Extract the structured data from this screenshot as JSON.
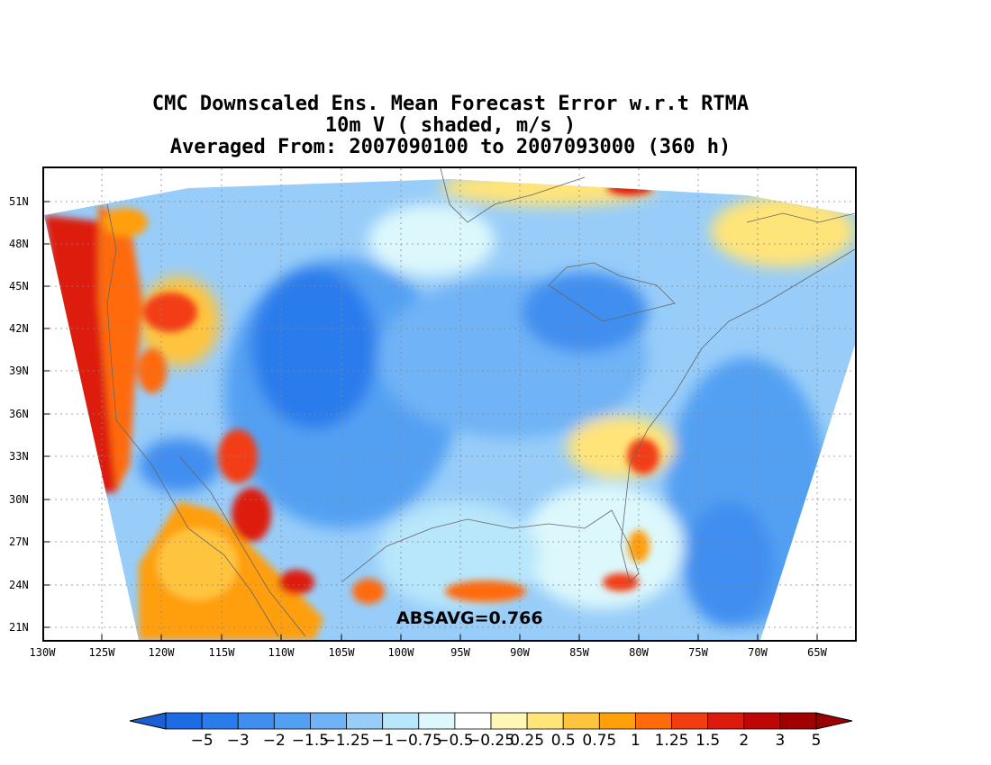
{
  "title": {
    "line1": "CMC Downscaled Ens. Mean Forecast Error w.r.t RTMA",
    "line2": "10m V ( shaded, m/s )",
    "line3": "Averaged From: 2007090100 to 2007093000 (360 h)"
  },
  "map": {
    "lat_ticks": [
      "51N",
      "48N",
      "45N",
      "42N",
      "39N",
      "36N",
      "33N",
      "30N",
      "27N",
      "24N",
      "21N"
    ],
    "lon_ticks": [
      "130W",
      "125W",
      "120W",
      "115W",
      "110W",
      "105W",
      "100W",
      "95W",
      "90W",
      "85W",
      "80W",
      "75W",
      "70W",
      "65W"
    ],
    "absavg_label": "ABSAVG=0.766",
    "regions": [
      {
        "name": "pacific-coast-positive",
        "level": 16
      },
      {
        "name": "baja-positive",
        "level": 13
      },
      {
        "name": "gulf-california-positive",
        "level": 16
      },
      {
        "name": "rockies-negative",
        "level": 1
      },
      {
        "name": "plains-negative",
        "level": 3
      },
      {
        "name": "atlantic-negative",
        "level": 3
      },
      {
        "name": "gulf-mexico-positive",
        "level": 14
      }
    ]
  },
  "colorbar": {
    "labels": [
      "−5",
      "−3",
      "−2",
      "−1.5",
      "−1.25",
      "−1",
      "−0.75",
      "−0.5",
      "−0.25",
      "0.25",
      "0.5",
      "0.75",
      "1",
      "1.25",
      "1.5",
      "2",
      "3",
      "5"
    ],
    "colors": [
      "#1e6be3",
      "#2a7cec",
      "#3f8ef0",
      "#52a0f3",
      "#6fb3f6",
      "#98cdf9",
      "#b8e6fb",
      "#dcf8fc",
      "#ffffff",
      "#fff7b6",
      "#ffe479",
      "#ffc43d",
      "#ff9f0a",
      "#ff6a0a",
      "#f23d12",
      "#dd1a0e",
      "#bf0606",
      "#a00000"
    ],
    "below_color": "#1a5fd6",
    "above_color": "#9a0000"
  }
}
